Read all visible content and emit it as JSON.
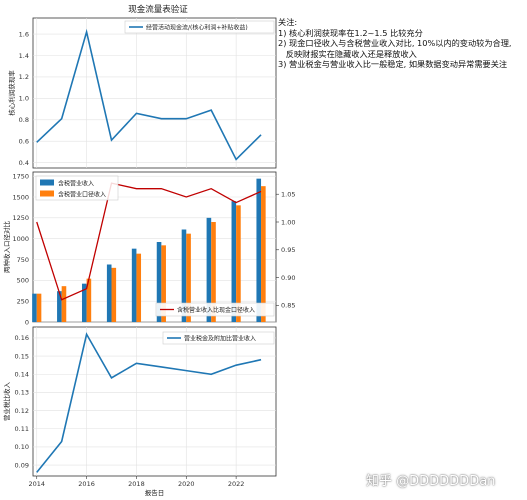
{
  "chart_data": [
    {
      "type": "line",
      "title": "现金流量表验证",
      "ylabel": "核心利润获现率",
      "xlabel": "",
      "x": [
        2014,
        2015,
        2016,
        2017,
        2018,
        2019,
        2020,
        2021,
        2022,
        2023
      ],
      "series": [
        {
          "name": "经营活动现金流/(核心利润+补贴收益)",
          "values": [
            0.59,
            0.81,
            1.62,
            0.61,
            0.86,
            0.81,
            0.81,
            0.89,
            0.43,
            0.66
          ],
          "color": "#1f77b4"
        }
      ],
      "ylim": [
        0.35,
        1.75
      ],
      "yticks": [
        "0.4",
        "0.6",
        "0.8",
        "1.0",
        "1.2",
        "1.4",
        "1.6"
      ],
      "grid": true,
      "legend": "top-right"
    },
    {
      "type": "bar",
      "title": "",
      "ylabel": "两种收入口径对比",
      "x": [
        2014,
        2015,
        2016,
        2017,
        2018,
        2019,
        2020,
        2021,
        2022,
        2023
      ],
      "series": [
        {
          "name": "含税营业收入",
          "values": [
            340,
            370,
            460,
            690,
            880,
            960,
            1110,
            1250,
            1450,
            1720
          ],
          "color": "#1f77b4"
        },
        {
          "name": "含税营业口径收入",
          "values": [
            340,
            430,
            520,
            650,
            820,
            920,
            1060,
            1200,
            1400,
            1630
          ],
          "color": "#ff7f0e"
        }
      ],
      "ylim": [
        0,
        1800
      ],
      "yticks": [
        "0",
        "250",
        "500",
        "750",
        "1000",
        "1250",
        "1500",
        "1750"
      ],
      "secondary": {
        "name": "含税营业收入比现金口径收入",
        "values": [
          1.0,
          0.86,
          0.88,
          1.07,
          1.06,
          1.06,
          1.045,
          1.06,
          1.035,
          1.055
        ],
        "color": "#c00000",
        "ylim": [
          0.82,
          1.09
        ],
        "yticks": [
          "0.85",
          "0.90",
          "0.95",
          "1.00",
          "1.05"
        ]
      },
      "grid": true,
      "legend": "top-left"
    },
    {
      "type": "line",
      "title": "",
      "ylabel": "营业税比收入",
      "xlabel": "报告日",
      "x": [
        2014,
        2015,
        2016,
        2017,
        2018,
        2019,
        2020,
        2021,
        2022,
        2023
      ],
      "series": [
        {
          "name": "营业税金及附加比营业收入",
          "values": [
            0.086,
            0.103,
            0.162,
            0.138,
            0.146,
            0.144,
            0.142,
            0.14,
            0.145,
            0.148
          ],
          "color": "#1f77b4"
        }
      ],
      "ylim": [
        0.084,
        0.166
      ],
      "yticks": [
        "0.09",
        "0.10",
        "0.11",
        "0.12",
        "0.13",
        "0.14",
        "0.15",
        "0.16"
      ],
      "xticks": [
        "2014",
        "2016",
        "2018",
        "2020",
        "2022"
      ],
      "grid": true,
      "legend": "top-right"
    }
  ],
  "notes": {
    "heading": "关注:",
    "items": [
      "1) 核心利润获现率在1.2~1.5 比较充分",
      "2) 现金口径收入与含税营业收入对比, 10%以内的变动较为合理,",
      "   反映财报实在隐藏收入还是释放收入",
      "3) 营业税金与营业收入比一般稳定, 如果数据变动异常需要关注"
    ]
  },
  "watermark": "知乎 @DDDDDDDan"
}
